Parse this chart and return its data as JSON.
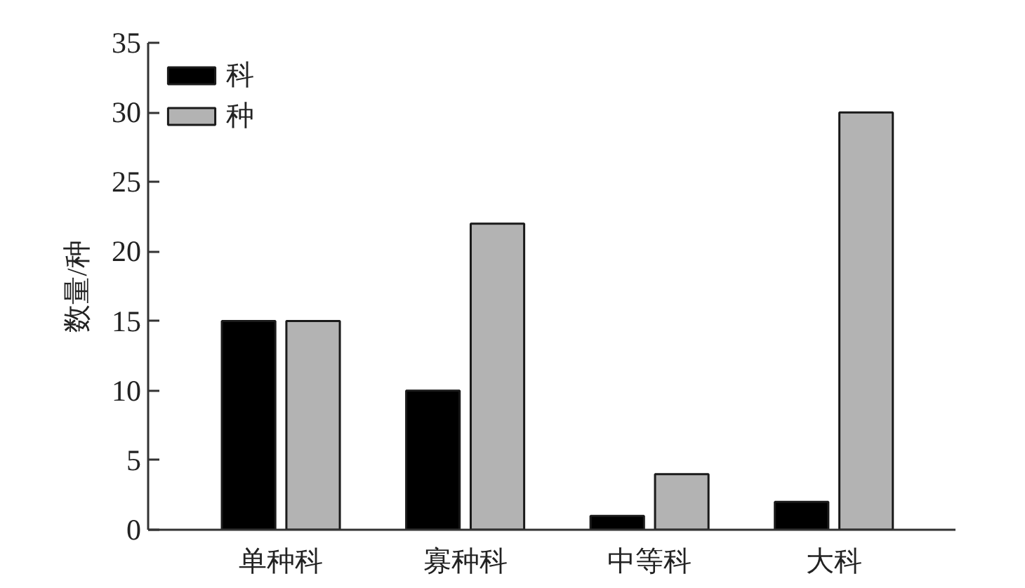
{
  "chart_data": {
    "type": "bar",
    "ylabel": "数量/种",
    "categories": [
      "单种科",
      "寡种科",
      "中等科",
      "大科"
    ],
    "series": [
      {
        "name": "科",
        "color": "#000000",
        "values": [
          15,
          10,
          1,
          2
        ]
      },
      {
        "name": "种",
        "color": "#b3b3b3",
        "values": [
          15,
          22,
          4,
          30
        ]
      }
    ],
    "ylim": [
      0,
      35
    ],
    "yticks": [
      0,
      5,
      10,
      15,
      20,
      25,
      30,
      35
    ],
    "legend": "top left"
  }
}
